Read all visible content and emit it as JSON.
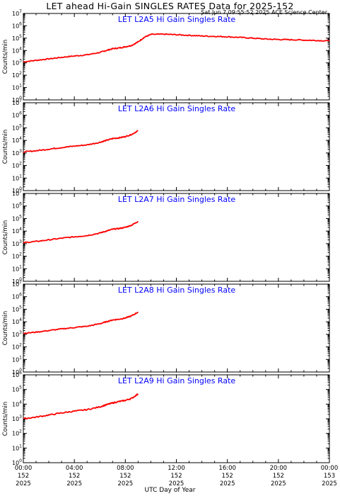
{
  "page": {
    "title": "LET ahead Hi-Gain SINGLES RATES Data for 2025-152",
    "timestamp": "Sat Jun  7 09:55:52 2025 ACE Science Center",
    "xlabel": "UTC Day of Year"
  },
  "colors": {
    "trace": "#ff0000",
    "panel_title": "#0000ff",
    "axis": "#000000",
    "background": "#ffffff"
  },
  "chart_data": [
    {
      "type": "line",
      "title": "LET L2A5 Hi Gain Singles Rate",
      "ylabel": "Counts/min",
      "yscale": "log",
      "ylim": [
        1,
        10000000
      ],
      "xlim": [
        0,
        24
      ],
      "x_unit": "hours UTC",
      "series": [
        {
          "x": [
            0,
            1,
            2,
            3,
            4,
            5,
            6,
            6.5,
            7,
            7.5,
            8,
            8.5,
            9,
            9.5,
            10,
            11,
            12,
            13,
            14,
            15,
            16,
            17,
            18,
            19,
            20,
            21,
            22,
            23,
            24
          ],
          "values": [
            1200,
            1600,
            2100,
            2800,
            3600,
            4500,
            7000,
            10000,
            14000,
            16000,
            20000,
            26000,
            50000,
            120000,
            200000,
            210000,
            190000,
            170000,
            150000,
            140000,
            130000,
            115000,
            100000,
            85000,
            78000,
            75000,
            70000,
            65000,
            60000
          ]
        }
      ]
    },
    {
      "type": "line",
      "title": "LET L2A6 Hi Gain Singles Rate",
      "ylabel": "Counts/min",
      "yscale": "log",
      "ylim": [
        1,
        10000000
      ],
      "xlim": [
        0,
        24
      ],
      "x_unit": "hours UTC",
      "series": [
        {
          "x": [
            0,
            1,
            2,
            3,
            4,
            5,
            6,
            6.5,
            7,
            7.5,
            8,
            8.5,
            9
          ],
          "values": [
            1200,
            1500,
            2000,
            2700,
            3500,
            4400,
            7000,
            10000,
            14000,
            16000,
            20000,
            30000,
            60000
          ]
        }
      ]
    },
    {
      "type": "line",
      "title": "LET L2A7 Hi Gain Singles Rate",
      "ylabel": "Counts/min",
      "yscale": "log",
      "ylim": [
        1,
        10000000
      ],
      "xlim": [
        0,
        24
      ],
      "x_unit": "hours UTC",
      "series": [
        {
          "x": [
            0,
            1,
            2,
            3,
            4,
            5,
            6,
            6.5,
            7,
            7.5,
            8,
            8.5,
            9
          ],
          "values": [
            1200,
            1500,
            2000,
            2700,
            3500,
            4400,
            7000,
            10000,
            14000,
            16000,
            20000,
            30000,
            60000
          ]
        }
      ]
    },
    {
      "type": "line",
      "title": "LET L2A8 Hi Gain Singles Rate",
      "ylabel": "Counts/min",
      "yscale": "log",
      "ylim": [
        1,
        10000000
      ],
      "xlim": [
        0,
        24
      ],
      "x_unit": "hours UTC",
      "series": [
        {
          "x": [
            0,
            1,
            2,
            3,
            4,
            5,
            6,
            6.5,
            7,
            7.5,
            8,
            8.5,
            9
          ],
          "values": [
            1200,
            1500,
            2000,
            2700,
            3500,
            4400,
            7000,
            10000,
            14000,
            16000,
            20000,
            30000,
            60000
          ]
        }
      ]
    },
    {
      "type": "line",
      "title": "LET L2A9 Hi Gain Singles Rate",
      "ylabel": "Counts/min",
      "yscale": "log",
      "ylim": [
        1,
        1000000
      ],
      "xlim": [
        0,
        24
      ],
      "x_unit": "hours UTC",
      "series": [
        {
          "x": [
            0,
            1,
            2,
            3,
            4,
            5,
            6,
            6.5,
            7,
            7.5,
            8,
            8.5,
            9
          ],
          "values": [
            1000,
            1300,
            1800,
            2500,
            3300,
            4200,
            6500,
            9000,
            12000,
            15000,
            18000,
            25000,
            50000
          ]
        }
      ]
    }
  ],
  "x_ticks": [
    {
      "x": 0,
      "l1": "00:00",
      "l2": "152",
      "l3": "2025"
    },
    {
      "x": 4,
      "l1": "04:00",
      "l2": "152",
      "l3": "2025"
    },
    {
      "x": 8,
      "l1": "08:00",
      "l2": "152",
      "l3": "2025"
    },
    {
      "x": 12,
      "l1": "12:00",
      "l2": "152",
      "l3": "2025"
    },
    {
      "x": 16,
      "l1": "16:00",
      "l2": "152",
      "l3": "2025"
    },
    {
      "x": 20,
      "l1": "20:00",
      "l2": "152",
      "l3": "2025"
    },
    {
      "x": 24,
      "l1": "00:00",
      "l2": "153",
      "l3": "2025"
    }
  ]
}
